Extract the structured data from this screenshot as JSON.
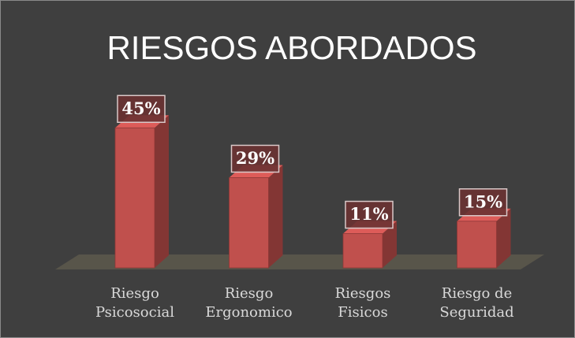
{
  "chart_data": {
    "type": "bar3d",
    "title": "RIESGOS ABORDADOS",
    "categories": [
      "Riesgo Psicosocial",
      "Riesgo Ergonomico",
      "Riesgos Fisicos",
      "Riesgo de Seguridad"
    ],
    "values": [
      45,
      29,
      11,
      15
    ],
    "value_labels": [
      "45%",
      "29%",
      "11%",
      "15%"
    ],
    "color": "#c0504d"
  }
}
